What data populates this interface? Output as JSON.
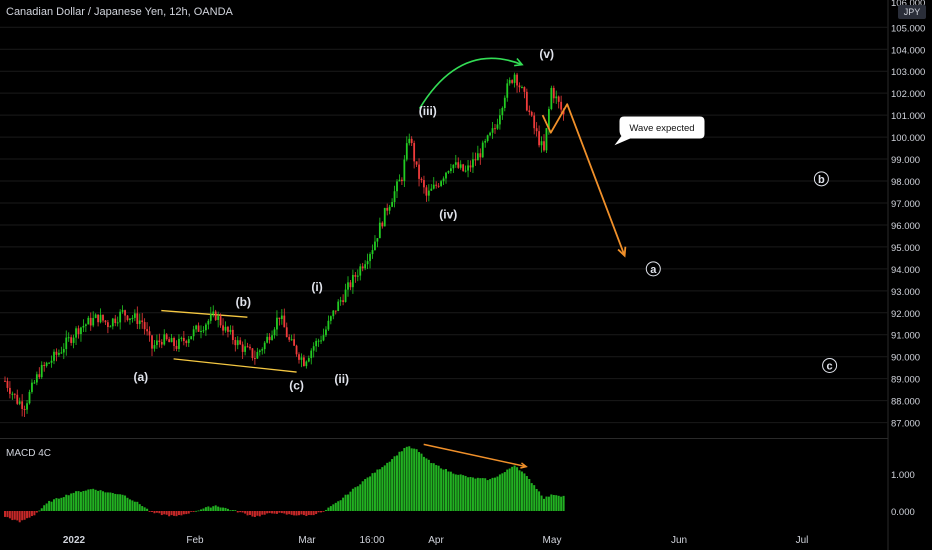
{
  "header": {
    "title": "Canadian Dollar / Japanese Yen, 12h, OANDA"
  },
  "indicator_label": "MACD 4C",
  "currency_badge": "JPY",
  "colors": {
    "up": "#26a69a",
    "up_bright": "#22cc22",
    "down": "#ef3b3b",
    "macd_pos": "#22b022",
    "macd_neg": "#c62828",
    "annotation_orange": "#f0902a",
    "annotation_yellow": "#f5c842",
    "annotation_green": "#33dd55",
    "axis_text": "#d1d4dc",
    "grid": "#1a1a1a",
    "background": "#000000"
  },
  "chart_data": [
    {
      "type": "candlestick",
      "title": "Canadian Dollar / Japanese Yen, 12h, OANDA",
      "x_labels": [
        "2022",
        "Feb",
        "Mar",
        "16:00",
        "Apr",
        "May",
        "Jun",
        "Jul"
      ],
      "y_ticks": [
        "105.000",
        "104.000",
        "103.000",
        "102.000",
        "101.000",
        "100.000",
        "99.000",
        "98.000",
        "97.000",
        "96.000",
        "95.000",
        "94.000",
        "93.000",
        "92.000",
        "91.000",
        "90.000",
        "89.000",
        "88.000",
        "87.000"
      ],
      "ylim": [
        86.5,
        105.8
      ],
      "price_path": [
        {
          "t": 0,
          "p": 88.9
        },
        {
          "t": 5,
          "p": 88.0
        },
        {
          "t": 8,
          "p": 87.8
        },
        {
          "t": 14,
          "p": 89.3
        },
        {
          "t": 22,
          "p": 90.2
        },
        {
          "t": 30,
          "p": 91.3
        },
        {
          "t": 38,
          "p": 91.8
        },
        {
          "t": 42,
          "p": 91.5
        },
        {
          "t": 48,
          "p": 92.0
        },
        {
          "t": 56,
          "p": 91.6
        },
        {
          "t": 60,
          "p": 90.4
        },
        {
          "t": 64,
          "p": 90.8
        },
        {
          "t": 70,
          "p": 90.5
        },
        {
          "t": 78,
          "p": 91.2
        },
        {
          "t": 86,
          "p": 91.9
        },
        {
          "t": 90,
          "p": 91.2
        },
        {
          "t": 96,
          "p": 90.5
        },
        {
          "t": 102,
          "p": 90.0
        },
        {
          "t": 106,
          "p": 90.6
        },
        {
          "t": 112,
          "p": 91.9
        },
        {
          "t": 116,
          "p": 90.7
        },
        {
          "t": 122,
          "p": 89.8
        },
        {
          "t": 126,
          "p": 90.5
        },
        {
          "t": 130,
          "p": 91.0
        },
        {
          "t": 135,
          "p": 92.2
        },
        {
          "t": 142,
          "p": 93.5
        },
        {
          "t": 150,
          "p": 95.0
        },
        {
          "t": 156,
          "p": 96.8
        },
        {
          "t": 162,
          "p": 98.2
        },
        {
          "t": 165,
          "p": 100.1
        },
        {
          "t": 168,
          "p": 98.5
        },
        {
          "t": 172,
          "p": 97.3
        },
        {
          "t": 176,
          "p": 97.8
        },
        {
          "t": 182,
          "p": 98.8
        },
        {
          "t": 188,
          "p": 98.4
        },
        {
          "t": 194,
          "p": 99.3
        },
        {
          "t": 200,
          "p": 100.4
        },
        {
          "t": 204,
          "p": 102.0
        },
        {
          "t": 208,
          "p": 102.9
        },
        {
          "t": 212,
          "p": 101.8
        },
        {
          "t": 216,
          "p": 100.4
        },
        {
          "t": 220,
          "p": 99.3
        },
        {
          "t": 223,
          "p": 102.2
        },
        {
          "t": 226,
          "p": 101.5
        },
        {
          "t": 228,
          "p": 101.0
        }
      ],
      "projection": {
        "points": [
          {
            "date": "Apr 27",
            "p": 101.0
          },
          {
            "date": "Apr 29",
            "p": 100.2
          },
          {
            "date": "May 3",
            "p": 101.5
          },
          {
            "date": "May 17",
            "p": 94.6
          }
        ]
      },
      "trend_lines": [
        {
          "from": {
            "date": "Jan 24",
            "p": 92.1
          },
          "to": {
            "date": "Feb 14",
            "p": 91.8
          }
        },
        {
          "from": {
            "date": "Jan 27",
            "p": 89.9
          },
          "to": {
            "date": "Feb 26",
            "p": 89.3
          }
        }
      ],
      "curve_arrow": {
        "from": {
          "date": "Mar 28",
          "p": 101.3
        },
        "to": {
          "date": "Apr 22",
          "p": 103.3
        }
      },
      "wave_labels": [
        {
          "text": "(a)",
          "date": "Jan 19",
          "p": 88.9
        },
        {
          "text": "(b)",
          "date": "Feb 13",
          "p": 92.3
        },
        {
          "text": "(c)",
          "date": "Feb 26",
          "p": 88.5
        },
        {
          "text": "(i)",
          "date": "Mar 3",
          "p": 93.0
        },
        {
          "text": "(ii)",
          "date": "Mar 9",
          "p": 88.8
        },
        {
          "text": "(iii)",
          "date": "Mar 30",
          "p": 101.0
        },
        {
          "text": "(iv)",
          "date": "Apr 4",
          "p": 96.3
        },
        {
          "text": "(v)",
          "date": "Apr 28",
          "p": 103.6
        }
      ],
      "circle_labels": [
        {
          "text": "b",
          "date": "Jul 4",
          "p": 98.1
        },
        {
          "text": "a",
          "date": "May 24",
          "p": 94.0
        },
        {
          "text": "c",
          "date": "Jul 6",
          "p": 89.6
        }
      ],
      "callout": {
        "text": "Wave expected"
      }
    },
    {
      "type": "bar",
      "name": "MACD 4C",
      "y_ticks": [
        "1.000",
        "0.000"
      ],
      "ylim": [
        -0.35,
        1.85
      ],
      "values_path": [
        {
          "t": 0,
          "v": -0.15
        },
        {
          "t": 6,
          "v": -0.3
        },
        {
          "t": 12,
          "v": -0.1
        },
        {
          "t": 18,
          "v": 0.25
        },
        {
          "t": 28,
          "v": 0.5
        },
        {
          "t": 36,
          "v": 0.6
        },
        {
          "t": 42,
          "v": 0.5
        },
        {
          "t": 48,
          "v": 0.45
        },
        {
          "t": 56,
          "v": 0.15
        },
        {
          "t": 60,
          "v": -0.05
        },
        {
          "t": 70,
          "v": -0.15
        },
        {
          "t": 80,
          "v": 0.05
        },
        {
          "t": 86,
          "v": 0.15
        },
        {
          "t": 94,
          "v": 0.0
        },
        {
          "t": 102,
          "v": -0.15
        },
        {
          "t": 110,
          "v": -0.05
        },
        {
          "t": 116,
          "v": -0.1
        },
        {
          "t": 124,
          "v": -0.12
        },
        {
          "t": 130,
          "v": -0.02
        },
        {
          "t": 136,
          "v": 0.25
        },
        {
          "t": 146,
          "v": 0.8
        },
        {
          "t": 156,
          "v": 1.3
        },
        {
          "t": 164,
          "v": 1.75
        },
        {
          "t": 168,
          "v": 1.65
        },
        {
          "t": 174,
          "v": 1.3
        },
        {
          "t": 182,
          "v": 1.05
        },
        {
          "t": 190,
          "v": 0.9
        },
        {
          "t": 198,
          "v": 0.85
        },
        {
          "t": 204,
          "v": 1.05
        },
        {
          "t": 208,
          "v": 1.25
        },
        {
          "t": 212,
          "v": 1.0
        },
        {
          "t": 216,
          "v": 0.7
        },
        {
          "t": 220,
          "v": 0.35
        },
        {
          "t": 224,
          "v": 0.45
        },
        {
          "t": 228,
          "v": 0.4
        }
      ],
      "divergence_line": {
        "from": {
          "date": "Mar 29",
          "v": 1.8
        },
        "to": {
          "date": "Apr 23",
          "v": 1.2
        }
      }
    }
  ]
}
